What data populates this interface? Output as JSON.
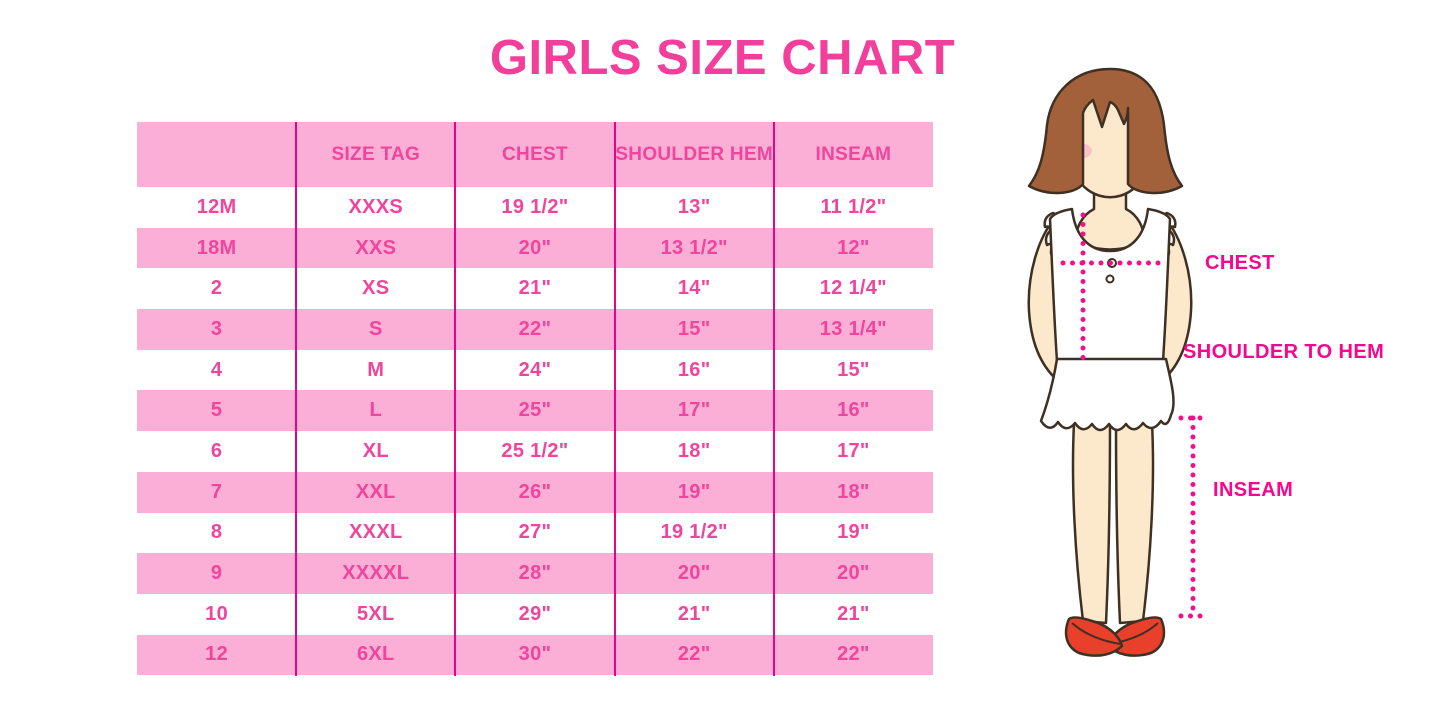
{
  "title": "GIRLS SIZE CHART",
  "chart_data": {
    "type": "table",
    "title": "GIRLS SIZE CHART",
    "columns": [
      "",
      "SIZE TAG",
      "CHEST",
      "SHOULDER HEM",
      "INSEAM"
    ],
    "rows": [
      [
        "12M",
        "XXXS",
        "19 1/2\"",
        "13\"",
        "11 1/2\""
      ],
      [
        "18M",
        "XXS",
        "20\"",
        "13 1/2\"",
        "12\""
      ],
      [
        "2",
        "XS",
        "21\"",
        "14\"",
        "12 1/4\""
      ],
      [
        "3",
        "S",
        "22\"",
        "15\"",
        "13 1/4\""
      ],
      [
        "4",
        "M",
        "24\"",
        "16\"",
        "15\""
      ],
      [
        "5",
        "L",
        "25\"",
        "17\"",
        "16\""
      ],
      [
        "6",
        "XL",
        "25 1/2\"",
        "18\"",
        "17\""
      ],
      [
        "7",
        "XXL",
        "26\"",
        "19\"",
        "18\""
      ],
      [
        "8",
        "XXXL",
        "27\"",
        "19 1/2\"",
        "19\""
      ],
      [
        "9",
        "XXXXL",
        "28\"",
        "20\"",
        "20\""
      ],
      [
        "10",
        "5XL",
        "29\"",
        "21\"",
        "21\""
      ],
      [
        "12",
        "6XL",
        "30\"",
        "22\"",
        "22\""
      ]
    ],
    "row_striping": "header and alternate rows pink, others white",
    "grid": "vertical magenta dividers between columns only"
  },
  "diagram": {
    "description": "cartoon girl with measurement guides",
    "labels": {
      "chest": "CHEST",
      "shoulder_to_hem": "SHOULDER TO HEM",
      "inseam": "INSEAM"
    }
  },
  "colors": {
    "title_pink": "#F23F9B",
    "row_pink": "#FBAED6",
    "text_pink": "#F0459C",
    "divider_pink": "#E2058A",
    "label_magenta": "#F5078F",
    "dotted_magenta": "#F0108C",
    "hair_brown": "#A3613B",
    "skin": "#FCE9CB",
    "blush": "#F6B6C6",
    "shoe_red": "#E8402A",
    "outline": "#3E3023"
  }
}
